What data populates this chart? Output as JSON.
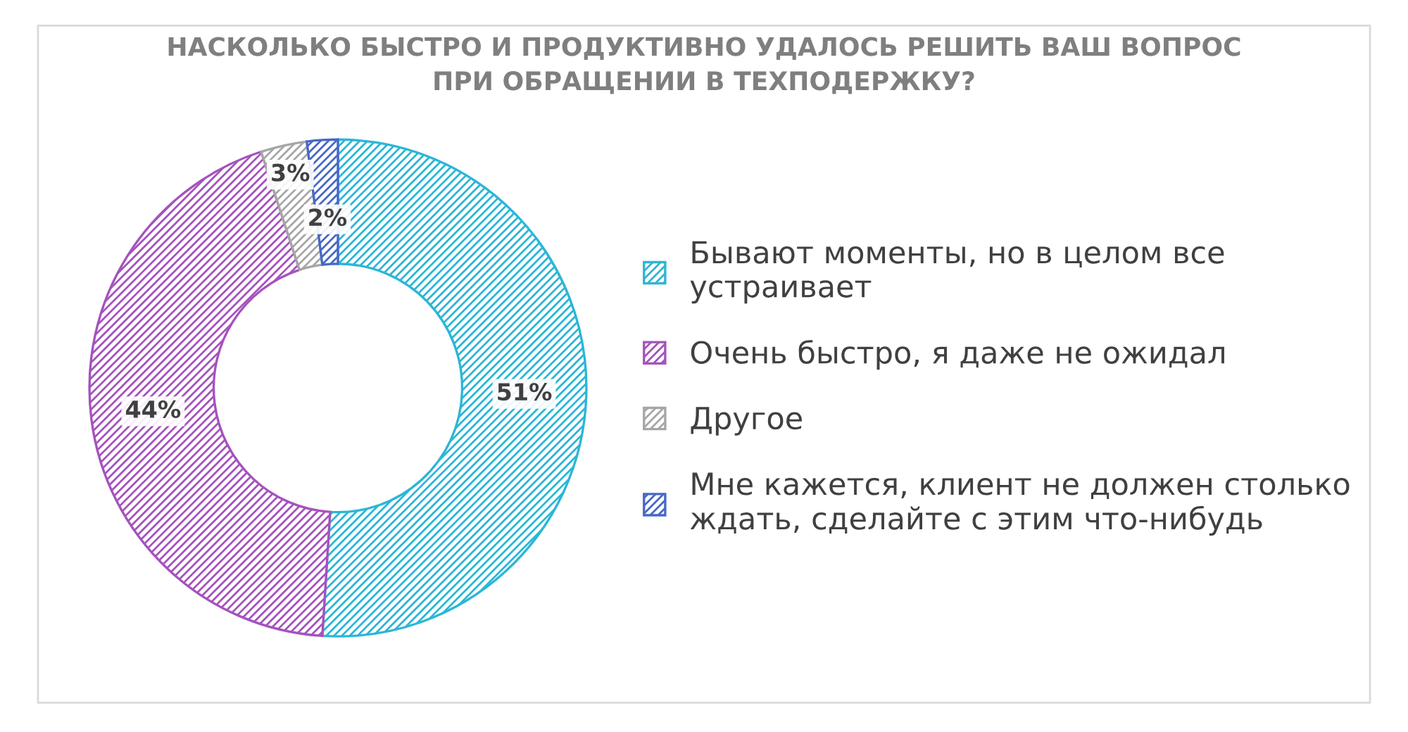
{
  "chart_data": {
    "type": "donut",
    "title": "НАСКОЛЬКО БЫСТРО И ПРОДУКТИВНО УДАЛОСЬ РЕШИТЬ ВАШ ВОПРОС\nПРИ ОБРАЩЕНИИ В ТЕХПОДЕРЖКУ?",
    "categories": [
      "Бывают моменты, но в целом все\nустраивает",
      "Очень быстро, я даже не ожидал",
      "Другое",
      "Мне кажется, клиент не должен столько\nждать, сделайте с этим что-нибудь"
    ],
    "values": [
      51,
      44,
      3,
      2
    ],
    "colors": [
      "#2bb6d6",
      "#a552bd",
      "#a6a6a6",
      "#4668c6"
    ],
    "value_labels": [
      "51%",
      "44%",
      "3%",
      "2%"
    ],
    "legend": "right"
  }
}
